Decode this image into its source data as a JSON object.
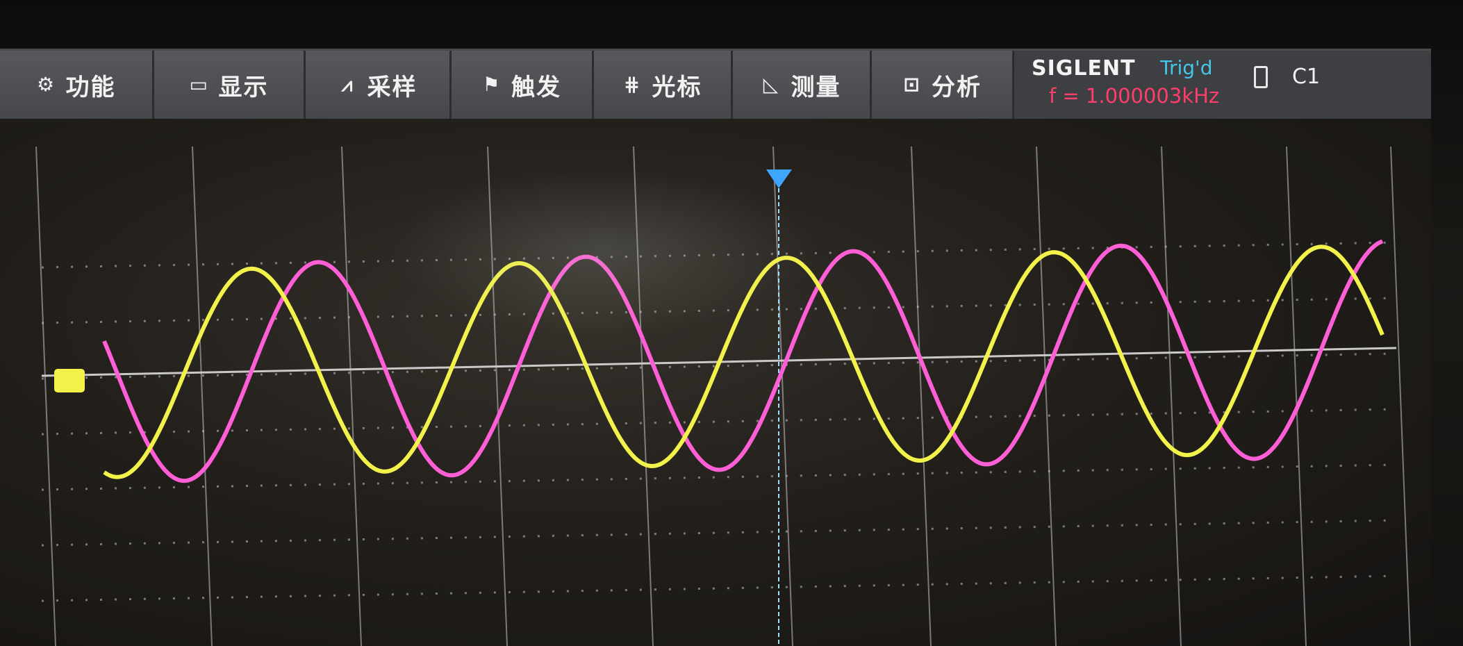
{
  "menu": {
    "items": [
      {
        "label": "功能",
        "icon": "gear-icon"
      },
      {
        "label": "显示",
        "icon": "monitor-icon"
      },
      {
        "label": "采样",
        "icon": "waveform-icon"
      },
      {
        "label": "触发",
        "icon": "flag-icon"
      },
      {
        "label": "光标",
        "icon": "cursor-icon"
      },
      {
        "label": "测量",
        "icon": "ruler-icon"
      },
      {
        "label": "分析",
        "icon": "chart-icon"
      }
    ]
  },
  "status": {
    "brand": "SIGLENT",
    "trigger_state": "Trig'd",
    "frequency": "f = 1.000003kHz",
    "channel": "C1"
  },
  "colors": {
    "channel1": "#f2f24a",
    "channel2": "#ff5fd6",
    "trigger_marker": "#3ea6ff",
    "grid": "#c9c9c9"
  },
  "waveforms": {
    "channel1": {
      "color": "yellow",
      "cycles_visible": 4.7
    },
    "channel2": {
      "color": "magenta",
      "phase_lag_cycles": 0.25
    }
  }
}
